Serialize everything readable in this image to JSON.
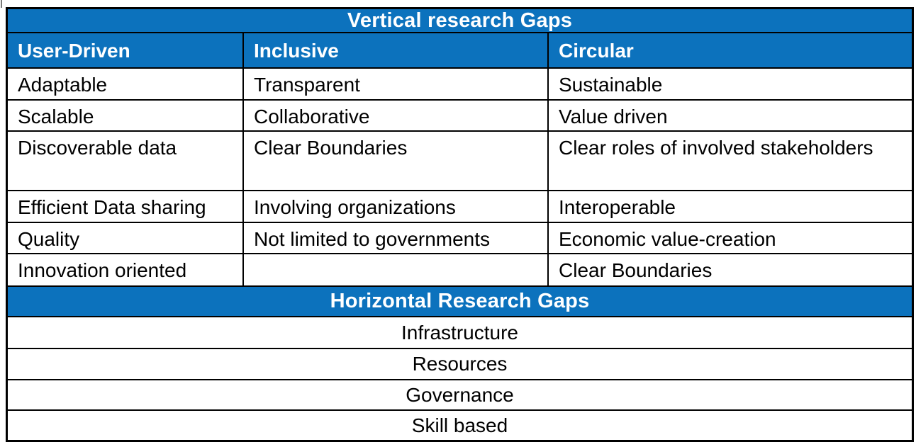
{
  "colors": {
    "header_blue": "#0C72BD",
    "header_text": "#FFFFFF",
    "body_text": "#000000",
    "border": "#000000"
  },
  "vertical_section": {
    "title": "Vertical research Gaps",
    "columns": [
      "User-Driven",
      "Inclusive",
      "Circular"
    ],
    "rows": [
      [
        "Adaptable",
        "Transparent",
        "Sustainable"
      ],
      [
        "Scalable",
        "Collaborative",
        "Value driven"
      ],
      [
        "Discoverable data",
        "Clear Boundaries",
        "Clear roles of involved stakeholders"
      ],
      [
        "Efficient Data sharing",
        "Involving organizations",
        "Interoperable"
      ],
      [
        "Quality",
        "Not limited to governments",
        "Economic value-creation"
      ],
      [
        "Innovation oriented",
        "",
        "Clear Boundaries"
      ]
    ]
  },
  "horizontal_section": {
    "title": "Horizontal Research Gaps",
    "rows": [
      "Infrastructure",
      "Resources",
      "Governance",
      "Skill based"
    ]
  }
}
